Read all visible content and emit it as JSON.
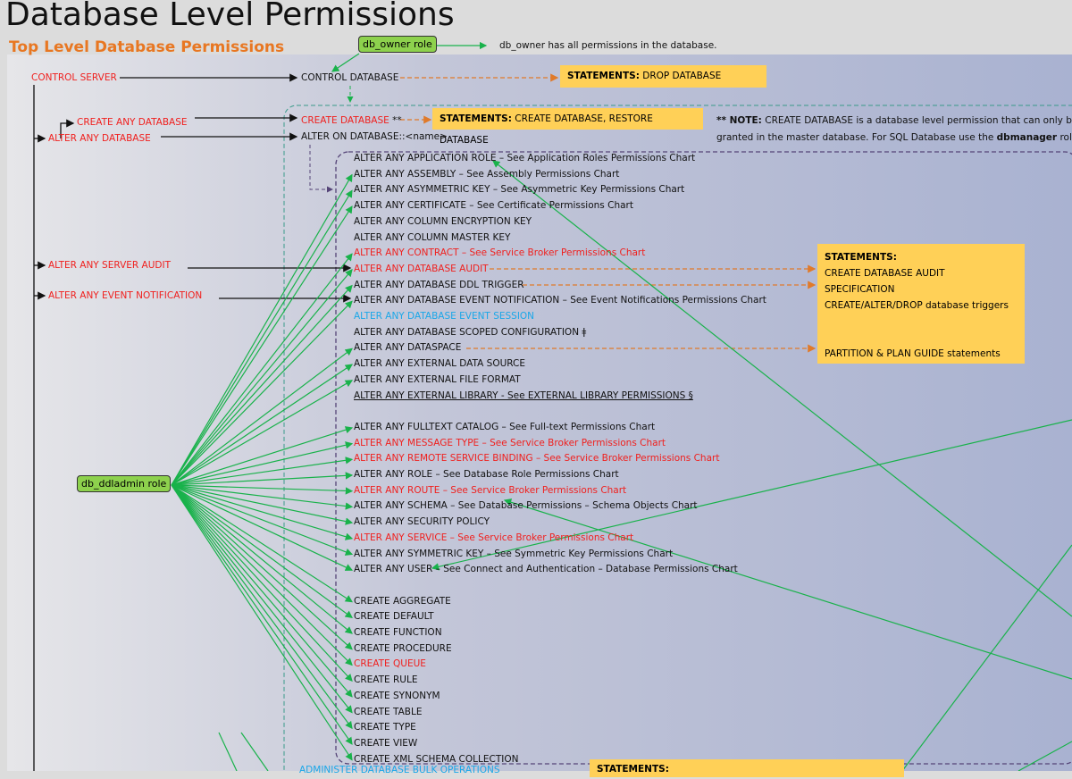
{
  "title": "Database Level Permissions",
  "subtitle": "Top Level Database Permissions",
  "roles": {
    "db_owner": "db_owner role",
    "db_owner_note": "db_owner has all permissions in the database.",
    "db_ddladmin": "db_ddladmin role"
  },
  "server": {
    "control_server": "CONTROL SERVER",
    "create_any_db": "CREATE ANY DATABASE",
    "alter_any_db": "ALTER ANY DATABASE",
    "alter_any_server_audit": "ALTER ANY SERVER AUDIT",
    "alter_any_event_notification": "ALTER ANY EVENT NOTIFICATION"
  },
  "database": {
    "control_db": "CONTROL DATABASE",
    "create_db": "CREATE DATABASE",
    "create_db_mark": "**",
    "alter_on_db": "ALTER ON DATABASE::<name>",
    "administer_bulk": "ADMINISTER DATABASE BULK OPERATIONS"
  },
  "statements": {
    "label": "STATEMENTS:",
    "drop": "DROP DATABASE",
    "create": "CREATE DATABASE, RESTORE DATABASE",
    "audit": "CREATE DATABASE AUDIT SPECIFICATION",
    "triggers": "CREATE/ALTER/DROP database triggers",
    "partition": "PARTITION & PLAN GUIDE statements"
  },
  "note": {
    "prefix": "** NOTE:",
    "line1": "CREATE DATABASE is a database level permission that can only be",
    "line2a": "granted in the master database. For SQL Database use the",
    "line2b": "dbmanager",
    "line2c": "role."
  },
  "items": [
    {
      "text": "ALTER ANY APPLICATION ROLE – See Application Roles Permissions Chart",
      "color": "black"
    },
    {
      "text": "ALTER ANY ASSEMBLY – See Assembly Permissions Chart",
      "color": "black"
    },
    {
      "text": "ALTER ANY ASYMMETRIC KEY – See Asymmetric Key Permissions Chart",
      "color": "black"
    },
    {
      "text": "ALTER ANY CERTIFICATE – See Certificate Permissions Chart",
      "color": "black"
    },
    {
      "text": "ALTER ANY COLUMN ENCRYPTION KEY",
      "color": "black"
    },
    {
      "text": "ALTER ANY COLUMN MASTER KEY",
      "color": "black"
    },
    {
      "text": "ALTER ANY CONTRACT – See Service Broker Permissions Chart",
      "color": "red"
    },
    {
      "text": "ALTER ANY DATABASE AUDIT",
      "color": "red"
    },
    {
      "text": "ALTER ANY DATABASE DDL TRIGGER",
      "color": "black"
    },
    {
      "text": "ALTER ANY DATABASE EVENT NOTIFICATION – See Event Notifications Permissions Chart",
      "color": "black"
    },
    {
      "text": "ALTER ANY DATABASE EVENT SESSION",
      "color": "blue"
    },
    {
      "text": "ALTER ANY DATABASE SCOPED CONFIGURATION ǂ",
      "color": "black"
    },
    {
      "text": "ALTER ANY DATASPACE",
      "color": "black"
    },
    {
      "text": "ALTER ANY EXTERNAL DATA SOURCE",
      "color": "black"
    },
    {
      "text": "ALTER ANY EXTERNAL FILE FORMAT",
      "color": "black"
    },
    {
      "text": "ALTER ANY EXTERNAL LIBRARY - See EXTERNAL LIBRARY PERMISSIONS §",
      "color": "underline"
    },
    {
      "text": "",
      "color": "black"
    },
    {
      "text": "ALTER ANY FULLTEXT CATALOG – See Full-text Permissions Chart",
      "color": "black"
    },
    {
      "text": "ALTER ANY MESSAGE TYPE – See Service Broker Permissions Chart",
      "color": "red"
    },
    {
      "text": "ALTER ANY REMOTE SERVICE BINDING – See Service Broker Permissions Chart",
      "color": "red"
    },
    {
      "text": "ALTER ANY ROLE – See Database Role Permissions Chart",
      "color": "black"
    },
    {
      "text": "ALTER ANY ROUTE – See Service Broker Permissions Chart",
      "color": "red"
    },
    {
      "text": "ALTER ANY SCHEMA – See Database Permissions – Schema Objects Chart",
      "color": "black"
    },
    {
      "text": "ALTER ANY SECURITY POLICY",
      "color": "black"
    },
    {
      "text": "ALTER ANY SERVICE – See Service Broker Permissions Chart",
      "color": "red"
    },
    {
      "text": "ALTER ANY SYMMETRIC KEY – See Symmetric Key Permissions Chart",
      "color": "black"
    },
    {
      "text": "ALTER ANY USER – See Connect and Authentication – Database Permissions Chart",
      "color": "black"
    },
    {
      "text": "",
      "color": "black"
    },
    {
      "text": "CREATE AGGREGATE",
      "color": "black"
    },
    {
      "text": "CREATE DEFAULT",
      "color": "black"
    },
    {
      "text": "CREATE FUNCTION",
      "color": "black"
    },
    {
      "text": "CREATE PROCEDURE",
      "color": "black"
    },
    {
      "text": "CREATE QUEUE",
      "color": "red"
    },
    {
      "text": "CREATE RULE",
      "color": "black"
    },
    {
      "text": "CREATE SYNONYM",
      "color": "black"
    },
    {
      "text": "CREATE TABLE",
      "color": "black"
    },
    {
      "text": "CREATE TYPE",
      "color": "black"
    },
    {
      "text": "CREATE VIEW",
      "color": "black"
    },
    {
      "text": "CREATE XML SCHEMA COLLECTION",
      "color": "black"
    }
  ],
  "colors": {
    "green": "#19b24b",
    "orange": "#e07a2a",
    "yellow": "#ffd057",
    "red": "#f0201e",
    "blue": "#1aa7e8"
  }
}
